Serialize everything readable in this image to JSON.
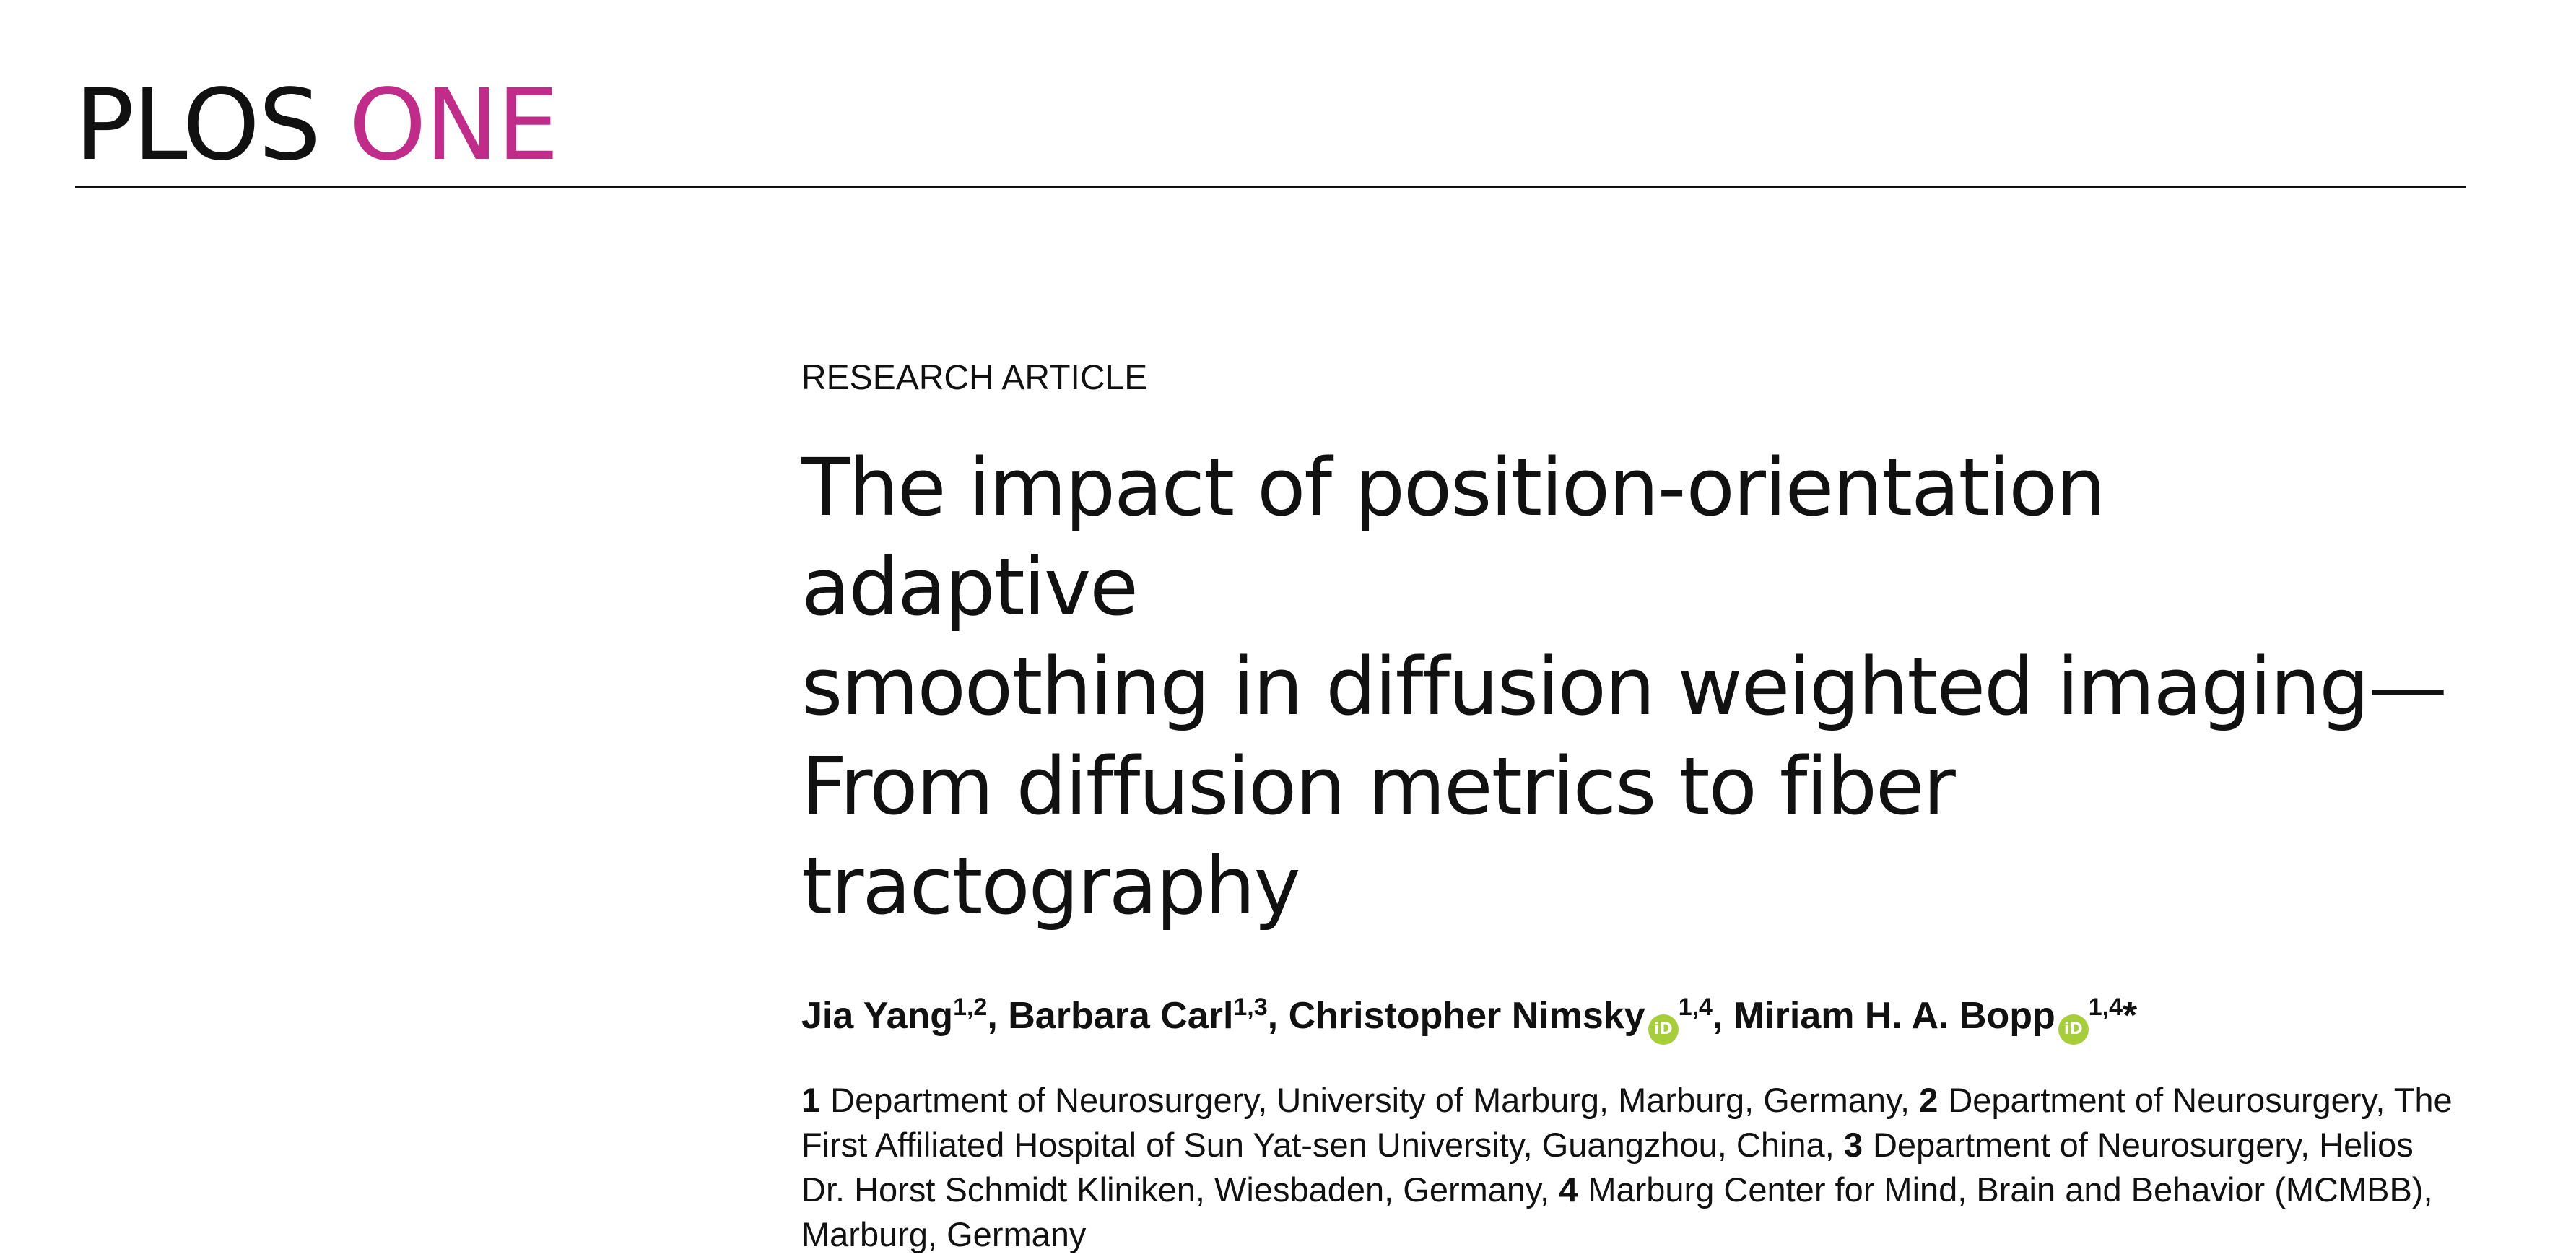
{
  "journal": {
    "name_part1": "PLOS",
    "name_part2": "ONE"
  },
  "article": {
    "type": "RESEARCH ARTICLE",
    "title_lines": [
      "The impact of position-orientation adaptive",
      "smoothing in diffusion weighted imaging—",
      "From diffusion metrics to fiber tractography"
    ]
  },
  "authors": [
    {
      "name": "Jia Yang",
      "affil": "1,2",
      "orcid": false
    },
    {
      "name": "Barbara Carl",
      "affil": "1,3",
      "orcid": false
    },
    {
      "name": "Christopher Nimsky",
      "affil": "1,4",
      "orcid": true
    },
    {
      "name": "Miriam H. A. Bopp",
      "affil": "1,4",
      "orcid": true,
      "corresponding": "*"
    }
  ],
  "author_separator": ", ",
  "orcid_icon_label": "iD",
  "affiliations": [
    {
      "num": "1",
      "text": "Department of Neurosurgery, University of Marburg, Marburg, Germany,"
    },
    {
      "num": "2",
      "text": "Department of Neurosurgery, The First Affiliated Hospital of Sun Yat-sen University, Guangzhou, China,"
    },
    {
      "num": "3",
      "text": "Department of Neurosurgery, Helios Dr. Horst Schmidt Kliniken, Wiesbaden, Germany,"
    },
    {
      "num": "4",
      "text": "Marburg Center for Mind, Brain and Behavior (MCMBB), Marburg, Germany"
    }
  ],
  "colors": {
    "brand_magenta": "#c12c8a",
    "orcid_green": "#a6ce39"
  }
}
